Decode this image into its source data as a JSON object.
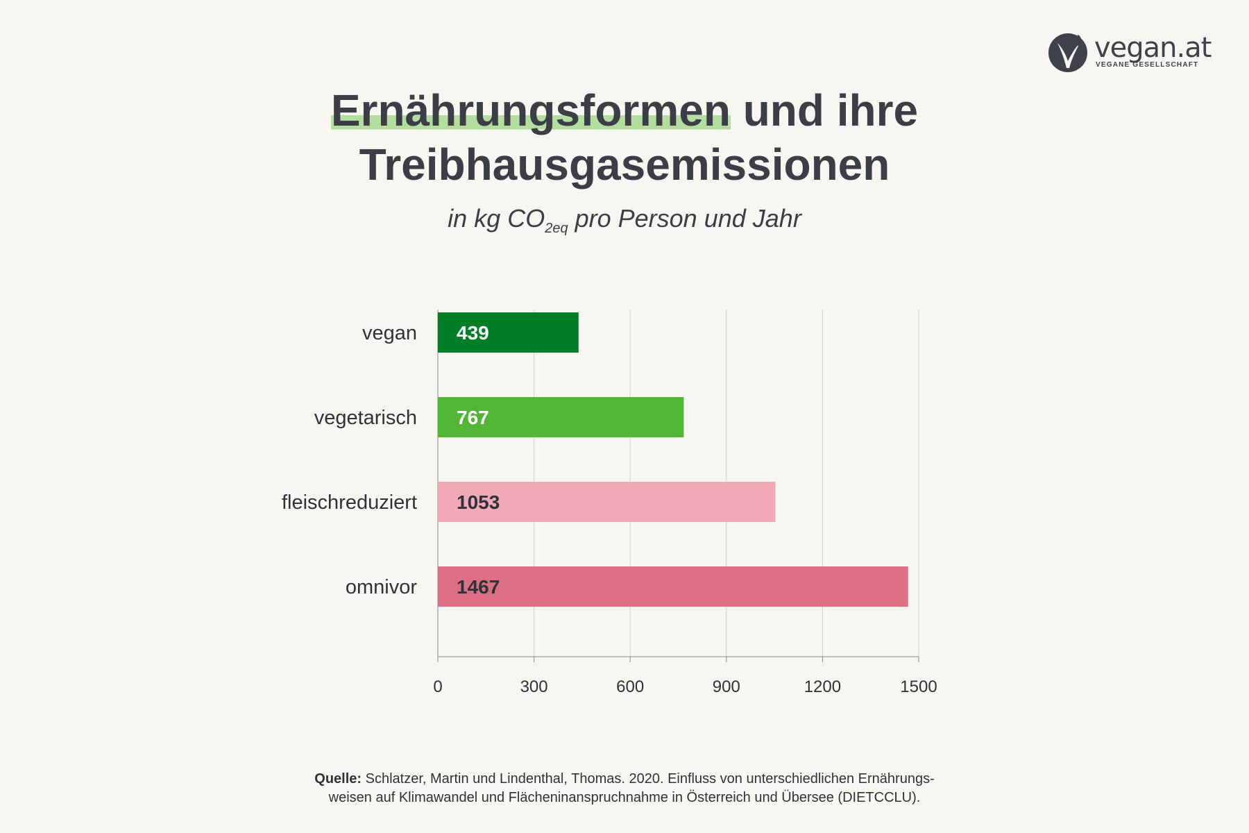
{
  "logo": {
    "wordmark": "vegan.at",
    "tagline": "VEGANE GESELLSCHAFT"
  },
  "header": {
    "title_highlight": "Ernährungsformen",
    "title_rest": "und ihre",
    "title_line2": "Treibhausgasemissionen",
    "subtitle_pre": "in kg CO",
    "subtitle_sub": "2eq",
    "subtitle_post": "pro Person und Jahr"
  },
  "chart_data": {
    "type": "bar",
    "orientation": "horizontal",
    "title": "Ernährungsformen und ihre Treibhausgasemissionen",
    "subtitle": "in kg CO2eq pro Person und Jahr",
    "categories": [
      "vegan",
      "vegetarisch",
      "fleischreduziert",
      "omnivor"
    ],
    "values": [
      439,
      767,
      1053,
      1467
    ],
    "value_labels": [
      "439",
      "767",
      "1053",
      "1467"
    ],
    "colors": [
      "#007f26",
      "#52b535",
      "#f2a9b8",
      "#dd6f84"
    ],
    "value_label_colors": [
      "#ffffff",
      "#ffffff",
      "#2f3238",
      "#2f3238"
    ],
    "xlim": [
      0,
      1500
    ],
    "xticks": [
      0,
      300,
      600,
      900,
      1200,
      1500
    ],
    "grid": true
  },
  "footer": {
    "source_label": "Quelle:",
    "source_line1": "Schlatzer, Martin und Lindenthal, Thomas. 2020. Einfluss von unterschiedlichen Ernährungs-",
    "source_line2": "weisen auf Klimawandel und Flächeninanspruchnahme in Österreich und Übersee (DIETCCLU)."
  }
}
